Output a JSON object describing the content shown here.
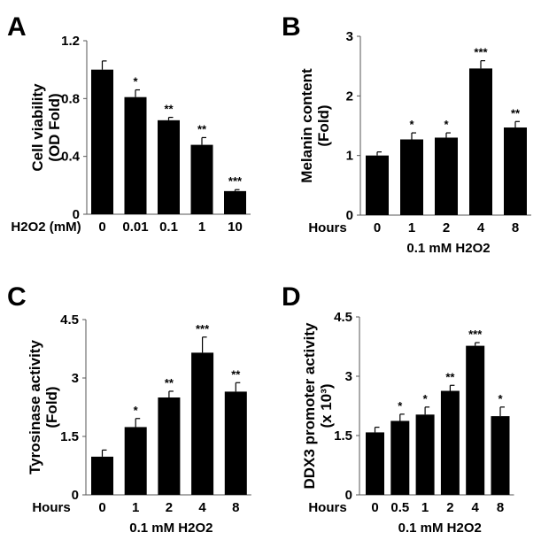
{
  "chart_data": [
    {
      "panel": "A",
      "type": "bar",
      "ylabel": [
        "Cell viability",
        "(OD Fold)"
      ],
      "xlabel_prefix": "H2O2 (mM)",
      "xlabel": "",
      "categories": [
        "0",
        "0.01",
        "0.1",
        "1",
        "10"
      ],
      "values": [
        1.0,
        0.81,
        0.65,
        0.48,
        0.16
      ],
      "errors": [
        0.06,
        0.05,
        0.02,
        0.05,
        0.01
      ],
      "significance": [
        "",
        "*",
        "**",
        "**",
        "***"
      ],
      "ylim": [
        0,
        1.2
      ],
      "yticks": [
        "0",
        "0.4",
        "0.8",
        "1.2"
      ]
    },
    {
      "panel": "B",
      "type": "bar",
      "ylabel": [
        "Melanin content",
        "(Fold)"
      ],
      "xlabel_prefix": "Hours",
      "xlabel": "0.1 mM H2O2",
      "categories": [
        "0",
        "1",
        "2",
        "4",
        "8"
      ],
      "values": [
        1.0,
        1.27,
        1.3,
        2.46,
        1.47
      ],
      "errors": [
        0.06,
        0.11,
        0.08,
        0.13,
        0.1
      ],
      "significance": [
        "",
        "*",
        "*",
        "***",
        "**"
      ],
      "ylim": [
        0,
        3
      ],
      "yticks": [
        "0",
        "1",
        "2",
        "3"
      ]
    },
    {
      "panel": "C",
      "type": "bar",
      "ylabel": [
        "Tyrosinase activity",
        "(Fold)"
      ],
      "xlabel_prefix": "Hours",
      "xlabel": "0.1 mM H2O2",
      "categories": [
        "0",
        "1",
        "2",
        "4",
        "8"
      ],
      "values": [
        0.98,
        1.74,
        2.5,
        3.65,
        2.65
      ],
      "errors": [
        0.17,
        0.22,
        0.16,
        0.4,
        0.23
      ],
      "significance": [
        "",
        "*",
        "**",
        "***",
        "**"
      ],
      "ylim": [
        0,
        4.5
      ],
      "yticks": [
        "0",
        "1.5",
        "3",
        "4.5"
      ]
    },
    {
      "panel": "D",
      "type": "bar",
      "ylabel": [
        "DDX3 promoter activity",
        "(x 10³)"
      ],
      "xlabel_prefix": "Hours",
      "xlabel": "0.1 mM H2O2",
      "categories": [
        "0",
        "0.5",
        "1",
        "2",
        "4",
        "8"
      ],
      "values": [
        1.58,
        1.87,
        2.03,
        2.63,
        3.77,
        1.99
      ],
      "errors": [
        0.13,
        0.17,
        0.19,
        0.14,
        0.08,
        0.23
      ],
      "significance": [
        "",
        "*",
        "*",
        "**",
        "***",
        "*"
      ],
      "ylim": [
        0,
        4.5
      ],
      "yticks": [
        "0",
        "1.5",
        "3",
        "4.5"
      ]
    }
  ]
}
